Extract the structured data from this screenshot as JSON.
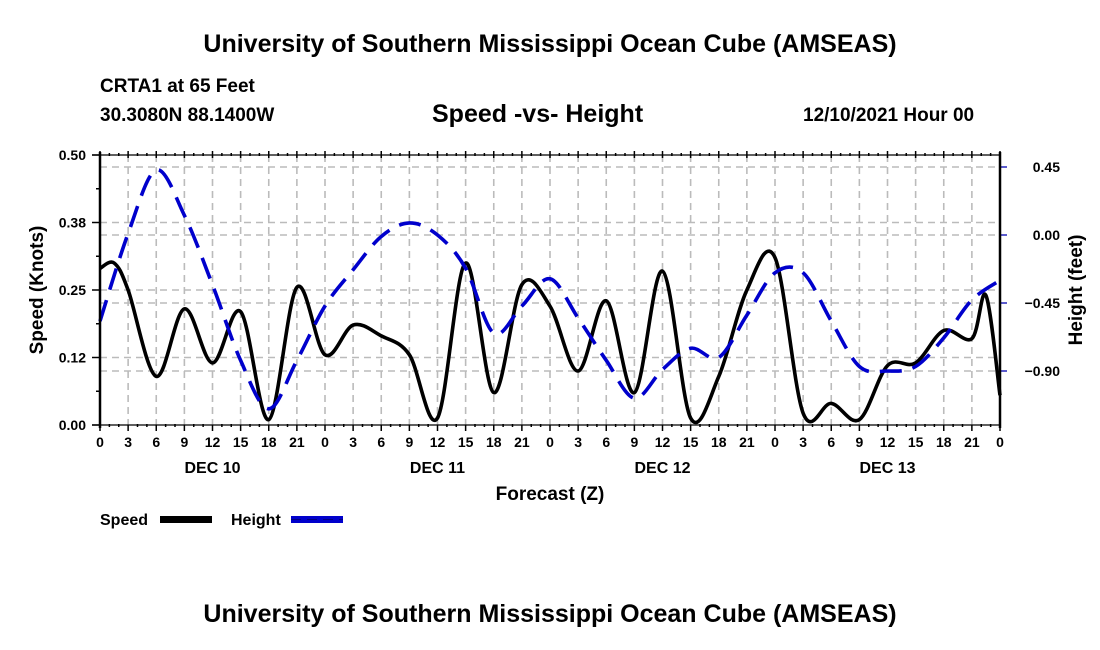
{
  "header": {
    "main_title": "University of Southern Mississippi Ocean Cube (AMSEAS)",
    "station": "CRTA1 at 65 Feet",
    "coords": "30.3080N  88.1400W",
    "subtitle": "Speed -vs- Height",
    "datetime": "12/10/2021 Hour 00"
  },
  "footer": {
    "bottom_title": "University of Southern Mississippi Ocean Cube (AMSEAS)"
  },
  "colors": {
    "speed": "#000000",
    "height": "#0000cc",
    "grid": "#bbbbbb"
  },
  "chart_data": {
    "type": "line",
    "title": "Speed -vs- Height",
    "xlabel": "Forecast (Z)",
    "ylabel": "Speed (Knots)",
    "y2label": "Height (feet)",
    "x_unit": "forecast hour",
    "xlim": [
      0,
      96
    ],
    "ylim": [
      0,
      0.5
    ],
    "y2lim": [
      -1.2,
      0.55
    ],
    "grid": true,
    "x_tick_labels": [
      "0",
      "3",
      "6",
      "9",
      "12",
      "15",
      "18",
      "21",
      "0",
      "3",
      "6",
      "9",
      "12",
      "15",
      "18",
      "21",
      "0",
      "3",
      "6",
      "9",
      "12",
      "15",
      "18",
      "21",
      "0",
      "3",
      "6",
      "9",
      "12",
      "15",
      "18",
      "21",
      "0"
    ],
    "day_labels": [
      {
        "label": "DEC 10",
        "hour": 12
      },
      {
        "label": "DEC 11",
        "hour": 36
      },
      {
        "label": "DEC 12",
        "hour": 60
      },
      {
        "label": "DEC 13",
        "hour": 84
      }
    ],
    "y_ticks": [
      {
        "value": 0.0,
        "label": "0.00"
      },
      {
        "value": 0.125,
        "label": "0.12"
      },
      {
        "value": 0.25,
        "label": "0.25"
      },
      {
        "value": 0.375,
        "label": "0.38"
      },
      {
        "value": 0.5,
        "label": "0.50"
      }
    ],
    "y2_ticks": [
      {
        "value": 0.45,
        "label": "0.45"
      },
      {
        "value": 0.0,
        "label": "0.00"
      },
      {
        "value": -0.45,
        "label": "−0.45"
      },
      {
        "value": -0.9,
        "label": "−0.90"
      }
    ],
    "legend": [
      {
        "name": "Speed",
        "style": "solid"
      },
      {
        "name": "Height",
        "style": "dashed"
      }
    ],
    "legend_position": "bottom-left",
    "series": [
      {
        "name": "Speed",
        "axis": "left",
        "x": [
          0,
          1.5,
          3,
          6,
          9,
          12,
          15,
          18,
          21,
          24,
          27,
          30,
          33,
          36,
          39,
          42,
          45,
          48,
          51,
          54,
          57,
          60,
          63,
          66,
          69,
          72,
          75,
          78,
          81,
          84,
          87,
          90,
          93,
          94.5,
          96
        ],
        "values": [
          0.29,
          0.3,
          0.25,
          0.09,
          0.215,
          0.115,
          0.21,
          0.01,
          0.255,
          0.13,
          0.185,
          0.165,
          0.13,
          0.013,
          0.3,
          0.06,
          0.26,
          0.22,
          0.1,
          0.23,
          0.06,
          0.285,
          0.013,
          0.09,
          0.25,
          0.31,
          0.022,
          0.04,
          0.01,
          0.11,
          0.115,
          0.175,
          0.16,
          0.24,
          0.055
        ]
      },
      {
        "name": "Height",
        "axis": "right",
        "x": [
          0,
          3,
          6,
          9,
          12,
          15,
          18,
          21,
          24,
          27,
          30,
          33,
          36,
          39,
          42,
          45,
          48,
          51,
          54,
          57,
          60,
          63,
          66,
          69,
          72,
          75,
          78,
          81,
          84,
          87,
          90,
          93,
          96
        ],
        "values": [
          -0.57,
          0.01,
          0.43,
          0.13,
          -0.33,
          -0.83,
          -1.15,
          -0.83,
          -0.47,
          -0.23,
          -0.01,
          0.08,
          0.0,
          -0.22,
          -0.65,
          -0.47,
          -0.29,
          -0.55,
          -0.83,
          -1.08,
          -0.89,
          -0.75,
          -0.81,
          -0.53,
          -0.25,
          -0.25,
          -0.57,
          -0.87,
          -0.9,
          -0.87,
          -0.68,
          -0.43,
          -0.3
        ]
      }
    ]
  }
}
